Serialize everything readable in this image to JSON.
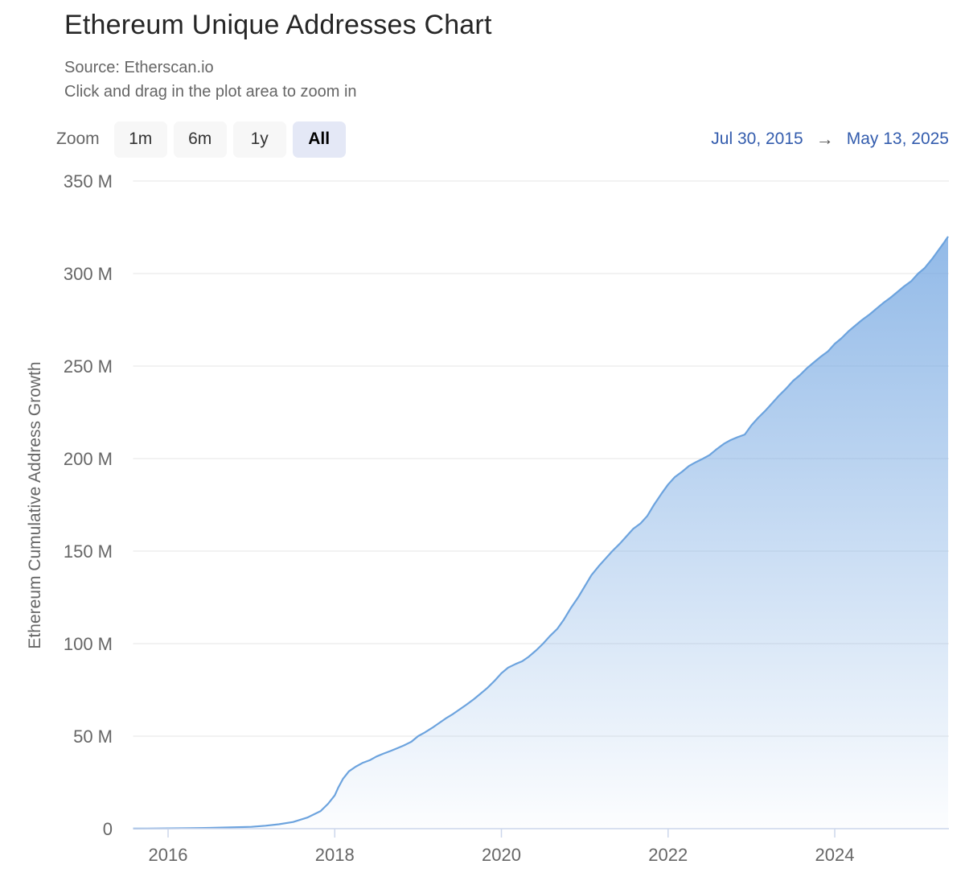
{
  "header": {
    "title": "Ethereum Unique Addresses Chart",
    "subtitle1": "Source: Etherscan.io",
    "subtitle2": "Click and drag in the plot area to zoom in"
  },
  "toolbar": {
    "zoom_label": "Zoom",
    "buttons": [
      {
        "label": "1m",
        "selected": false
      },
      {
        "label": "6m",
        "selected": false
      },
      {
        "label": "1y",
        "selected": false
      },
      {
        "label": "All",
        "selected": true
      }
    ],
    "range": {
      "from": "Jul 30, 2015",
      "arrow": "→",
      "to": "May 13, 2025",
      "text_color": "#335cad"
    }
  },
  "chart_data": {
    "type": "area",
    "title": "Ethereum Unique Addresses Chart",
    "xlabel": "",
    "ylabel": "Ethereum Cumulative Address Growth",
    "unit": "M (millions of addresses)",
    "x_range": [
      2015.58,
      2025.37
    ],
    "y_range": [
      0,
      350
    ],
    "grid": true,
    "legend": "none",
    "y_ticks": [
      {
        "v": 0,
        "label": "0"
      },
      {
        "v": 50,
        "label": "50 M"
      },
      {
        "v": 100,
        "label": "100 M"
      },
      {
        "v": 150,
        "label": "150 M"
      },
      {
        "v": 200,
        "label": "200 M"
      },
      {
        "v": 250,
        "label": "250 M"
      },
      {
        "v": 300,
        "label": "300 M"
      },
      {
        "v": 350,
        "label": "350 M"
      }
    ],
    "x_ticks": [
      {
        "v": 2016,
        "label": "2016"
      },
      {
        "v": 2018,
        "label": "2018"
      },
      {
        "v": 2020,
        "label": "2020"
      },
      {
        "v": 2022,
        "label": "2022"
      },
      {
        "v": 2024,
        "label": "2024"
      }
    ],
    "series": [
      {
        "name": "Ethereum Cumulative Address Growth",
        "x": [
          2015.58,
          2015.75,
          2016.0,
          2016.25,
          2016.5,
          2016.75,
          2017.0,
          2017.17,
          2017.33,
          2017.5,
          2017.67,
          2017.83,
          2017.92,
          2018.0,
          2018.04,
          2018.1,
          2018.17,
          2018.25,
          2018.33,
          2018.42,
          2018.5,
          2018.58,
          2018.67,
          2018.75,
          2018.83,
          2018.92,
          2019.0,
          2019.08,
          2019.17,
          2019.25,
          2019.33,
          2019.42,
          2019.5,
          2019.58,
          2019.67,
          2019.75,
          2019.83,
          2019.92,
          2020.0,
          2020.08,
          2020.17,
          2020.25,
          2020.33,
          2020.42,
          2020.5,
          2020.58,
          2020.67,
          2020.75,
          2020.83,
          2020.92,
          2021.0,
          2021.08,
          2021.17,
          2021.25,
          2021.33,
          2021.42,
          2021.5,
          2021.58,
          2021.67,
          2021.75,
          2021.83,
          2021.92,
          2022.0,
          2022.08,
          2022.17,
          2022.25,
          2022.33,
          2022.42,
          2022.5,
          2022.58,
          2022.67,
          2022.75,
          2022.83,
          2022.92,
          2023.0,
          2023.08,
          2023.17,
          2023.25,
          2023.33,
          2023.42,
          2023.5,
          2023.58,
          2023.67,
          2023.75,
          2023.83,
          2023.92,
          2024.0,
          2024.08,
          2024.17,
          2024.25,
          2024.33,
          2024.42,
          2024.5,
          2024.58,
          2024.67,
          2024.75,
          2024.83,
          2024.92,
          2025.0,
          2025.08,
          2025.17,
          2025.25,
          2025.3,
          2025.36
        ],
        "values": [
          0.05,
          0.1,
          0.16,
          0.3,
          0.45,
          0.7,
          1.0,
          1.6,
          2.4,
          3.6,
          6.0,
          9.5,
          13.5,
          18.0,
          22.0,
          27.0,
          31.0,
          33.5,
          35.5,
          37.0,
          39.0,
          40.5,
          42.0,
          43.5,
          45.0,
          47.0,
          50.0,
          52.0,
          54.5,
          57.0,
          59.5,
          62.0,
          64.5,
          67.0,
          70.0,
          73.0,
          76.0,
          80.0,
          84.0,
          87.0,
          89.0,
          90.5,
          93.0,
          96.5,
          100.0,
          104.0,
          108.0,
          113.0,
          119.0,
          125.0,
          131.0,
          137.0,
          142.0,
          146.0,
          150.0,
          154.0,
          158.0,
          162.0,
          165.0,
          169.0,
          175.0,
          181.0,
          186.0,
          190.0,
          193.0,
          196.0,
          198.0,
          200.0,
          202.0,
          205.0,
          208.0,
          210.0,
          211.5,
          213.0,
          218.0,
          222.0,
          226.0,
          230.0,
          234.0,
          238.0,
          242.0,
          245.0,
          249.0,
          252.0,
          255.0,
          258.0,
          262.0,
          265.0,
          269.0,
          272.0,
          275.0,
          278.0,
          281.0,
          284.0,
          287.0,
          290.0,
          293.0,
          296.0,
          300.0,
          303.0,
          308.0,
          313.0,
          316.0,
          320.0
        ]
      }
    ],
    "colors": {
      "line": "#6ca3de",
      "fill_top": "rgba(110,163,224,0.82)",
      "fill_bottom": "rgba(110,163,224,0.02)",
      "grid": "#e6e6e6",
      "axis_line": "#ccd6eb",
      "label_text": "#666666"
    }
  }
}
